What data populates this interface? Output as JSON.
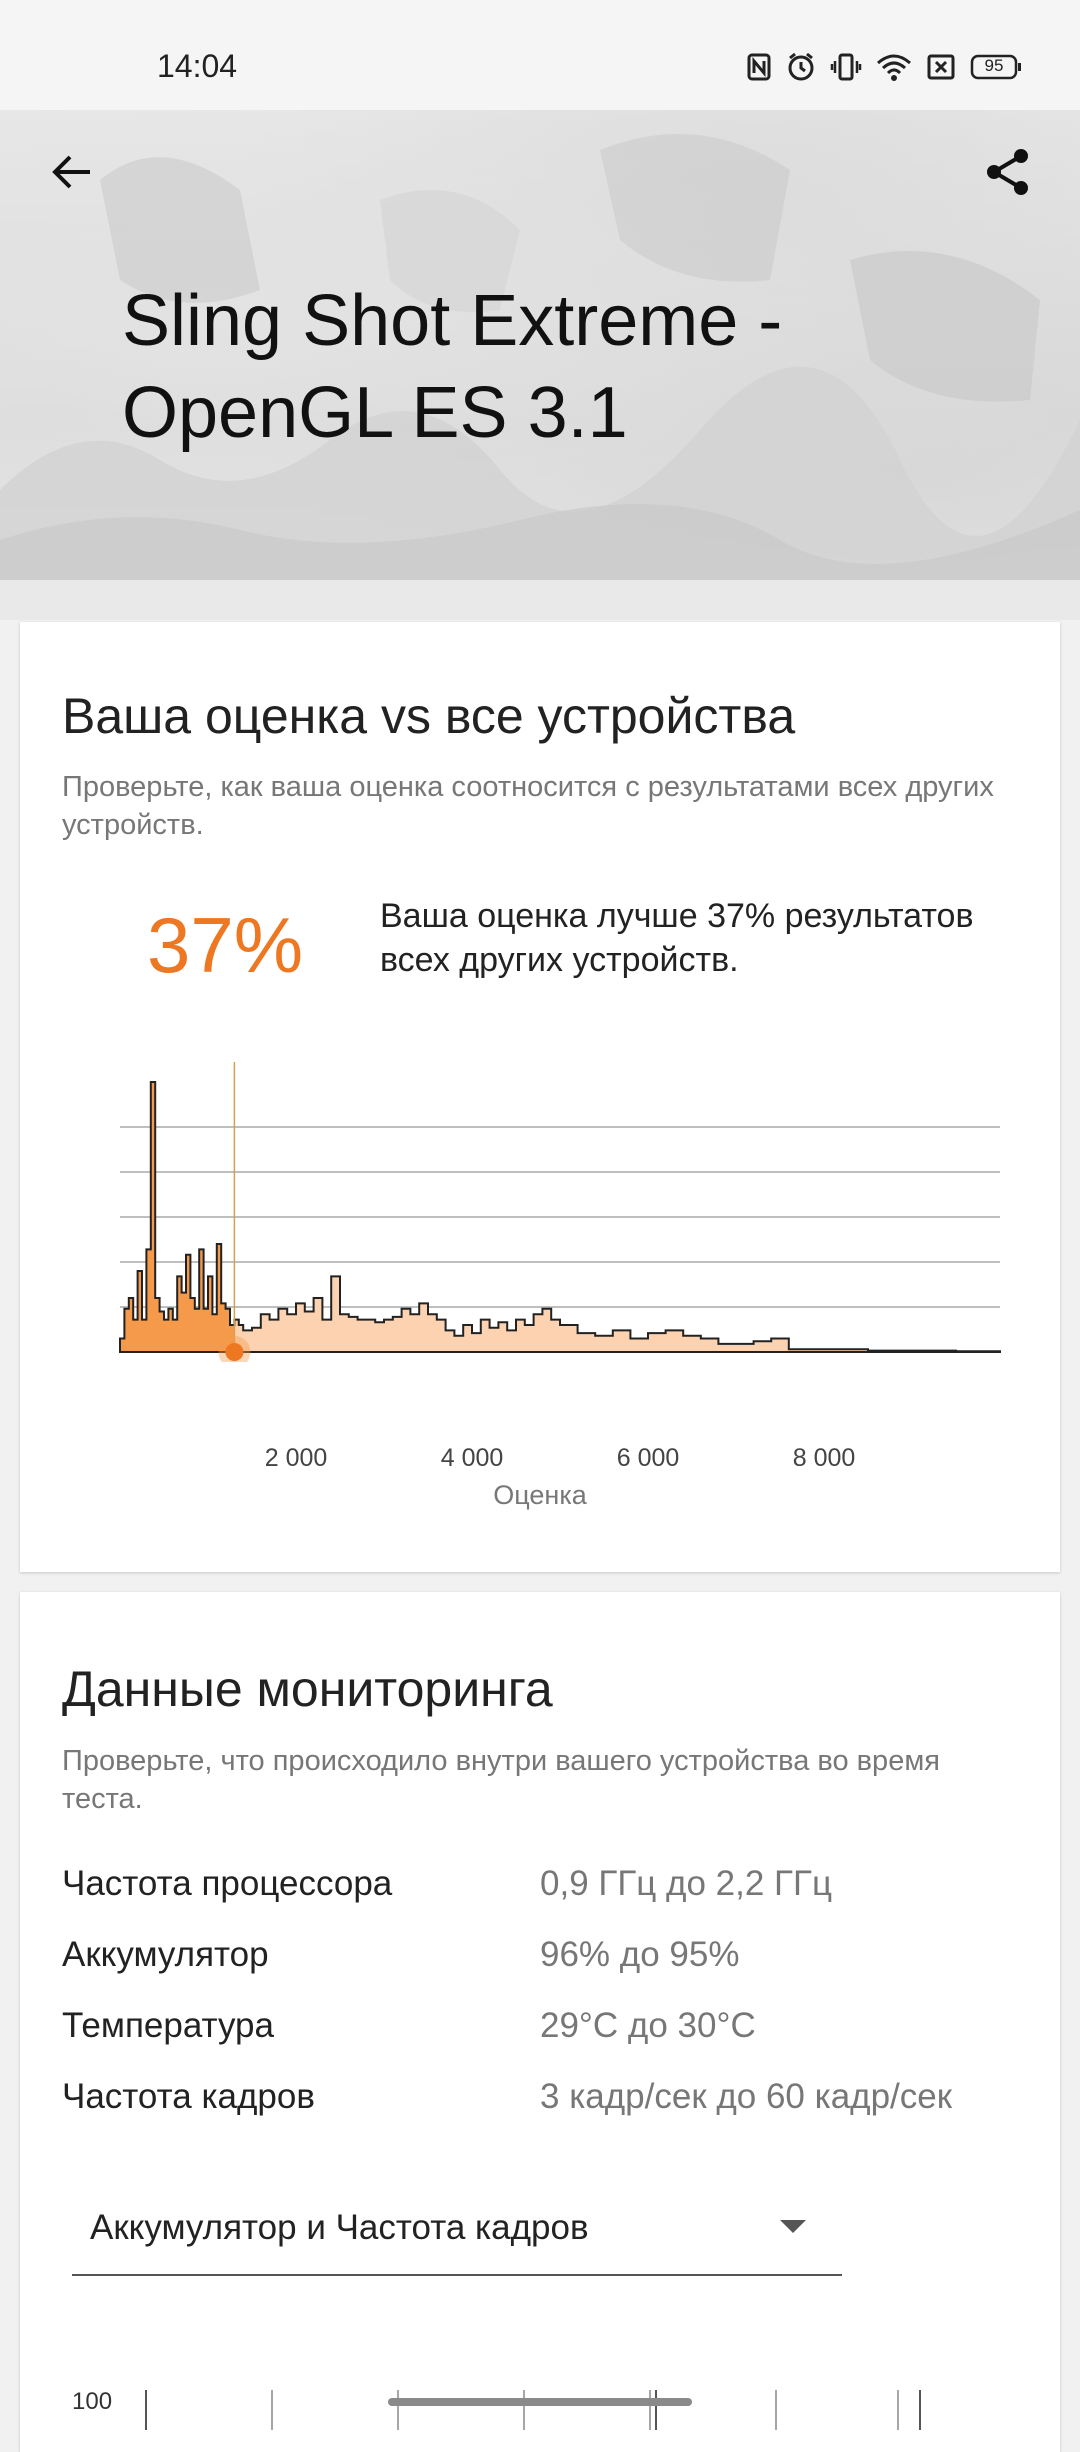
{
  "status_bar": {
    "time": "14:04",
    "battery": "95",
    "icons": [
      "nfc-icon",
      "alarm-icon",
      "vibrate-icon",
      "wifi-icon",
      "sim-off-icon",
      "battery-icon"
    ]
  },
  "header": {
    "title": "Sling Shot Extreme -\nOpenGL ES 3.1",
    "back_icon": "arrow-left-icon",
    "share_icon": "share-icon"
  },
  "comparison": {
    "title": "Ваша оценка vs все устройства",
    "subtitle": "Проверьте, как ваша оценка соотносится с результатами всех других устройств.",
    "percent": "37%",
    "percent_desc": "Ваша оценка лучше 37% результатов всех других устройств.",
    "accent_color": "#ee7722"
  },
  "chart_data": {
    "type": "area",
    "title": "",
    "xlabel": "Оценка",
    "ylabel": "",
    "xlim": [
      0,
      10000
    ],
    "x_ticks": [
      "2 000",
      "4 000",
      "6 000",
      "8 000"
    ],
    "x_tick_values": [
      2000,
      4000,
      6000,
      8000
    ],
    "grid": true,
    "user_score": 1300,
    "x": [
      0,
      50,
      100,
      150,
      200,
      250,
      300,
      350,
      400,
      450,
      500,
      550,
      600,
      650,
      700,
      750,
      800,
      850,
      900,
      950,
      1000,
      1050,
      1100,
      1150,
      1200,
      1250,
      1300,
      1350,
      1400,
      1500,
      1600,
      1700,
      1800,
      1900,
      2000,
      2100,
      2200,
      2300,
      2400,
      2500,
      2600,
      2700,
      2800,
      2900,
      3000,
      3100,
      3200,
      3300,
      3400,
      3500,
      3600,
      3700,
      3800,
      3900,
      4000,
      4100,
      4200,
      4300,
      4400,
      4500,
      4600,
      4700,
      4800,
      4900,
      5000,
      5200,
      5400,
      5600,
      5800,
      6000,
      6200,
      6400,
      6600,
      6800,
      7000,
      7200,
      7400,
      7600,
      8000,
      8500,
      9000,
      9500,
      10000
    ],
    "y": [
      5,
      16,
      20,
      12,
      30,
      12,
      38,
      100,
      20,
      15,
      12,
      16,
      12,
      28,
      22,
      36,
      20,
      16,
      38,
      16,
      28,
      14,
      40,
      18,
      16,
      10,
      12,
      10,
      8,
      9,
      14,
      12,
      16,
      14,
      18,
      15,
      20,
      12,
      28,
      14,
      13,
      12,
      12,
      11,
      12,
      13,
      16,
      14,
      18,
      14,
      12,
      8,
      6,
      10,
      7,
      12,
      9,
      11,
      8,
      12,
      10,
      14,
      16,
      12,
      10,
      7,
      6,
      8,
      5,
      7,
      8,
      6,
      5,
      3,
      3,
      4,
      5,
      1,
      1,
      0.5,
      0.5,
      0.3,
      0
    ]
  },
  "monitoring": {
    "title": "Данные мониторинга",
    "subtitle": "Проверьте, что происходило внутри вашего устройства во время теста.",
    "rows": [
      {
        "key": "Частота процессора",
        "value": "0,9 ГГц до 2,2 ГГц"
      },
      {
        "key": "Аккумулятор",
        "value": "96% до 95%"
      },
      {
        "key": "Температура",
        "value": "29°C до 30°C"
      },
      {
        "key": "Частота кадров",
        "value": "3 кадр/сек до 60 кадр/сек"
      }
    ],
    "dropdown": "Аккумулятор и Частота кадров",
    "mini_chart_label": "100"
  }
}
